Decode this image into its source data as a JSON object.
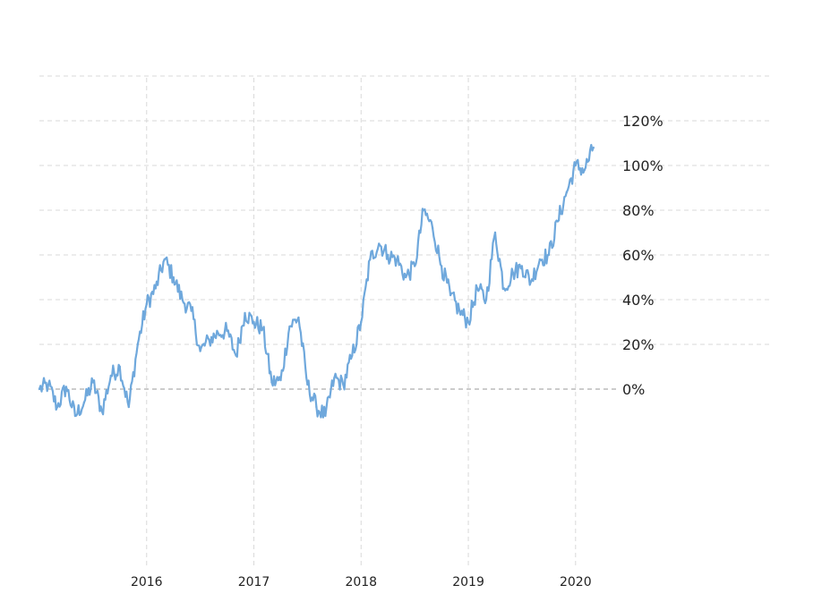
{
  "chart_data": {
    "type": "line",
    "title": "",
    "xlabel": "",
    "ylabel": "",
    "x_ticks": [
      "2016",
      "2017",
      "2018",
      "2019",
      "2020"
    ],
    "y_ticks": [
      "0%",
      "20%",
      "40%",
      "60%",
      "80%",
      "100%",
      "120%"
    ],
    "ylim": [
      -160,
      140
    ],
    "xlim": [
      "2015-01",
      "2020-03"
    ],
    "grid": true,
    "colors": {
      "series": "#6fa8dc",
      "grid": "#d9d9d9",
      "zero_line": "#9a9a9a"
    },
    "series": [
      {
        "x": [
          "2015-01",
          "2015-02",
          "2015-03",
          "2015-04",
          "2015-05",
          "2015-06",
          "2015-07",
          "2015-08",
          "2015-09",
          "2015-10",
          "2015-11",
          "2015-12",
          "2016-01",
          "2016-02",
          "2016-03",
          "2016-04",
          "2016-05",
          "2016-06",
          "2016-07",
          "2016-08",
          "2016-09",
          "2016-10",
          "2016-11",
          "2016-12",
          "2017-01",
          "2017-02",
          "2017-03",
          "2017-04",
          "2017-05",
          "2017-06",
          "2017-07",
          "2017-08",
          "2017-09",
          "2017-10",
          "2017-11",
          "2017-12",
          "2018-01",
          "2018-02",
          "2018-03",
          "2018-04",
          "2018-05",
          "2018-06",
          "2018-07",
          "2018-08",
          "2018-09",
          "2018-10",
          "2018-11",
          "2018-12",
          "2019-01",
          "2019-02",
          "2019-03",
          "2019-04",
          "2019-05",
          "2019-06",
          "2019-07",
          "2019-08",
          "2019-09",
          "2019-10",
          "2019-11",
          "2019-12",
          "2020-01",
          "2020-02",
          "2020-03"
        ],
        "values": [
          0,
          2,
          -8,
          1,
          -12,
          -6,
          3,
          -10,
          6,
          10,
          -8,
          20,
          38,
          45,
          58,
          50,
          40,
          35,
          17,
          22,
          25,
          26,
          15,
          34,
          30,
          27,
          3,
          4,
          28,
          32,
          2,
          -8,
          -12,
          5,
          2,
          15,
          30,
          58,
          65,
          60,
          58,
          50,
          55,
          80,
          72,
          55,
          42,
          35,
          30,
          45,
          40,
          70,
          45,
          52,
          55,
          48,
          58,
          60,
          75,
          88,
          100,
          98,
          108
        ]
      }
    ]
  }
}
